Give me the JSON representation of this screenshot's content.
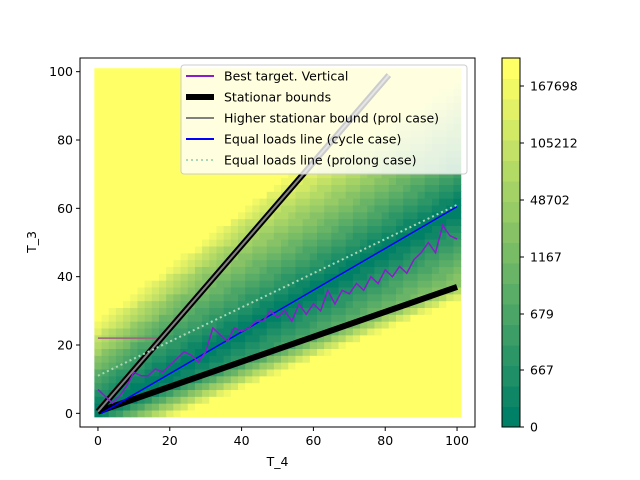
{
  "chart_data": {
    "type": "heatmap",
    "xlabel": "T_4",
    "ylabel": "T_3",
    "xlim": [
      -5,
      105
    ],
    "ylim": [
      -4,
      104
    ],
    "x_ticks": [
      "0",
      "20",
      "40",
      "60",
      "80",
      "100"
    ],
    "y_ticks": [
      "0",
      "20",
      "40",
      "60",
      "80",
      "100"
    ],
    "colormap": {
      "low_color": "#008066",
      "high_color": "#ffff66",
      "levels": 18,
      "tick_labels": [
        "0",
        "667",
        "679",
        "1167",
        "48702",
        "105212",
        "167698"
      ]
    },
    "legend": {
      "placement": "top-center",
      "entries": [
        {
          "label": "Best target. Vertical",
          "color": "#8a1ccc",
          "style": "solid"
        },
        {
          "label": "Stationar bounds",
          "color": "#000000",
          "style": "thick"
        },
        {
          "label": "Higher stationar bound (prol case)",
          "color": "#808080",
          "style": "solid"
        },
        {
          "label": "Equal loads line (cycle case)",
          "color": "#0000ff",
          "style": "solid"
        },
        {
          "label": "Equal loads line (prolong case)",
          "color": "#a8d8b8",
          "style": "dotted"
        }
      ]
    },
    "series": [
      {
        "name": "Best target. Vertical",
        "color": "#8a1ccc",
        "x": [
          0,
          2,
          4,
          6,
          8,
          10,
          12,
          14,
          16,
          18,
          20,
          22,
          24,
          26,
          28,
          30,
          32,
          34,
          36,
          38,
          40,
          42,
          44,
          46,
          48,
          50,
          52,
          54,
          56,
          58,
          60,
          62,
          64,
          66,
          68,
          70,
          72,
          74,
          76,
          78,
          80,
          82,
          84,
          86,
          88,
          90,
          92,
          94,
          96,
          98,
          100
        ],
        "y": [
          7,
          5,
          3,
          5,
          8,
          12,
          11,
          11,
          13,
          12,
          14,
          16,
          18,
          17,
          15,
          18,
          25,
          23,
          21,
          25,
          24,
          25,
          27,
          27,
          30,
          28,
          30,
          27,
          32,
          29,
          32,
          30,
          36,
          32,
          36,
          35,
          38,
          36,
          40,
          38,
          42,
          40,
          43,
          41,
          45,
          47,
          50,
          47,
          55,
          52,
          51
        ]
      },
      {
        "name": "Stationar bounds",
        "color": "#000000",
        "lines": [
          {
            "x": [
              0,
              100
            ],
            "y": [
              0.5,
              37
            ]
          },
          {
            "x": [
              0,
              81
            ],
            "y": [
              0.5,
              99
            ]
          }
        ]
      },
      {
        "name": "Higher stationar bound (prol case)",
        "color": "#808080",
        "x": [
          0,
          81
        ],
        "y": [
          0.5,
          99
        ]
      },
      {
        "name": "Equal loads line (cycle case)",
        "color": "#0000ff",
        "x": [
          1,
          100
        ],
        "y": [
          0,
          60.5
        ]
      },
      {
        "name": "Equal loads line (prolong case)",
        "color": "#a8d8b8",
        "x": [
          0,
          100
        ],
        "y": [
          11,
          61
        ]
      }
    ],
    "annotations": [
      {
        "type": "segment",
        "color": "#a06080",
        "x": [
          0,
          17
        ],
        "y": [
          22,
          22
        ]
      }
    ]
  }
}
